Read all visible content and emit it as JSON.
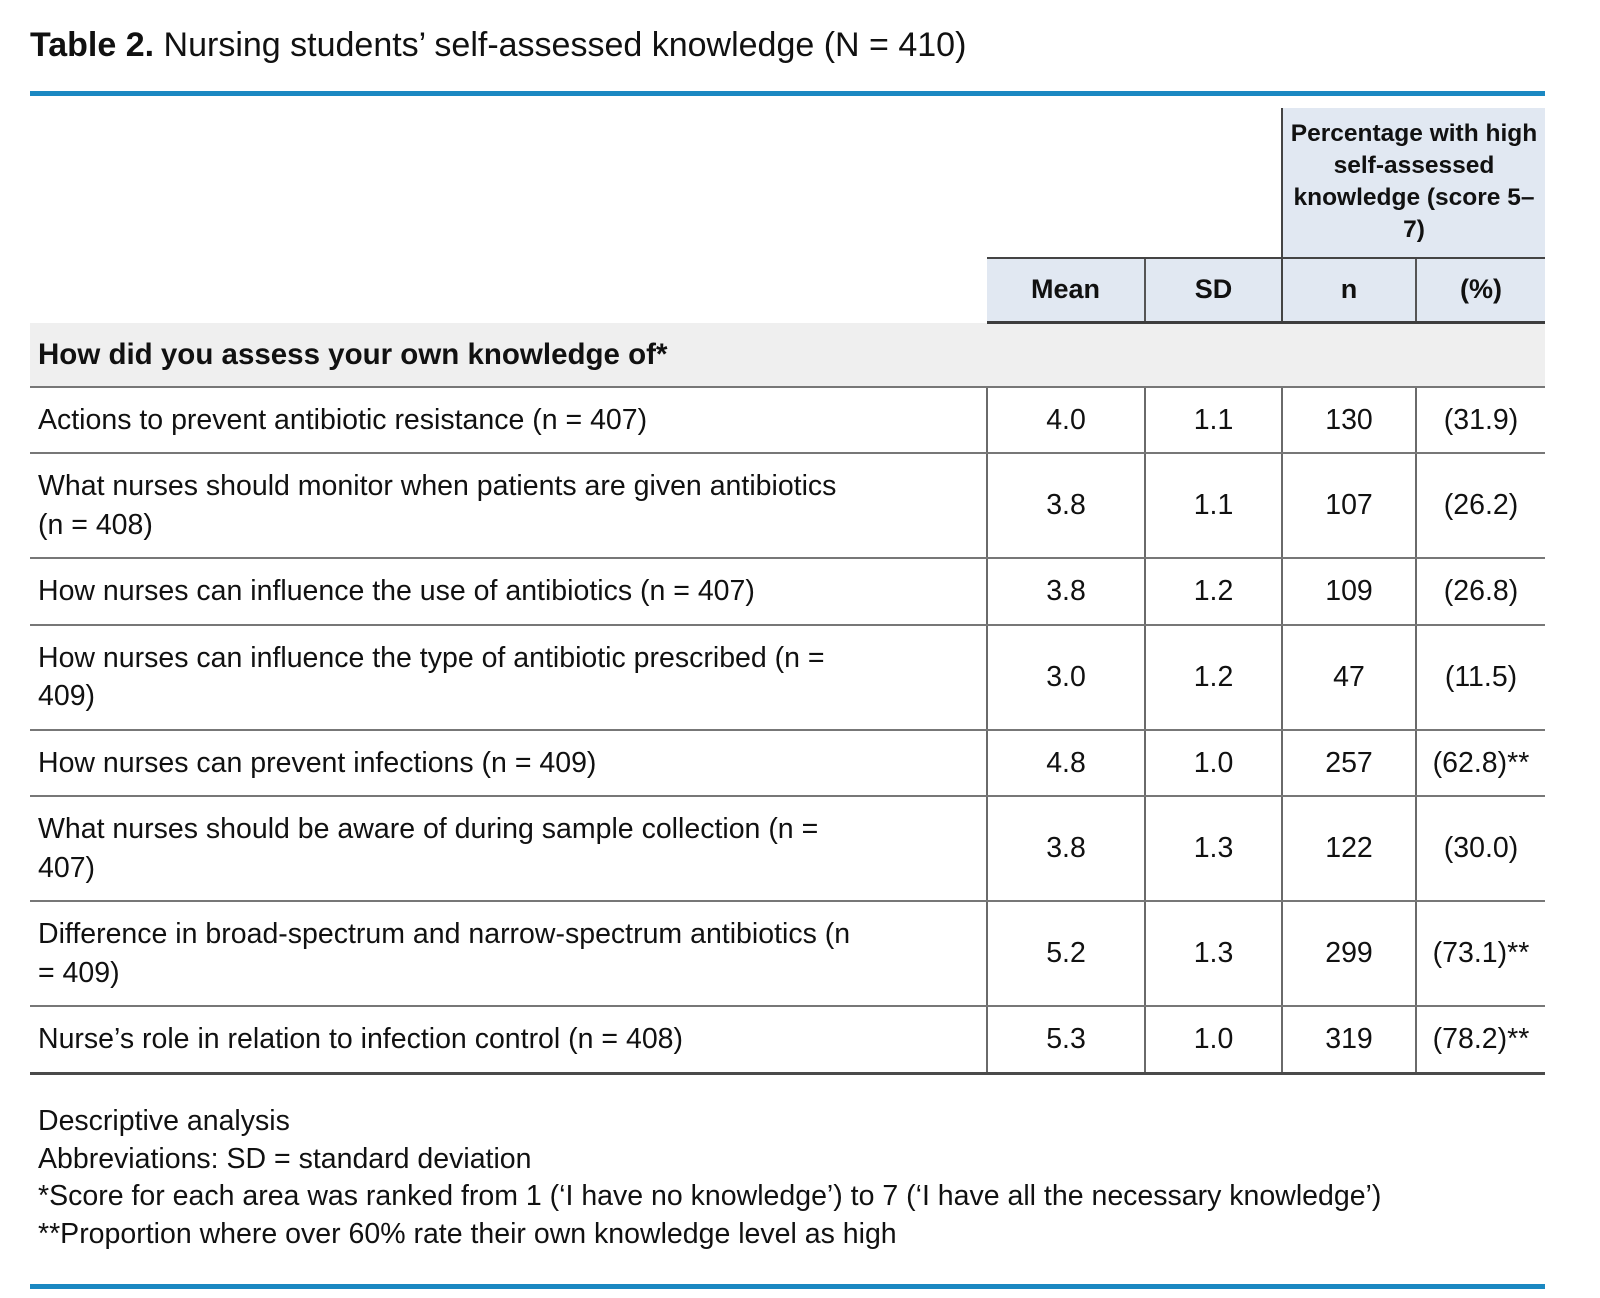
{
  "title": {
    "label": "Table 2.",
    "text": " Nursing students’ self-assessed knowledge (N = 410)"
  },
  "colors": {
    "accent_blue": "#1b88c2",
    "header_fill": "#e1e8f2",
    "section_fill": "#efefef"
  },
  "header": {
    "group_header": "Percentage with high self-assessed knowledge (score 5–7)",
    "columns": {
      "mean": "Mean",
      "sd": "SD",
      "n": "n",
      "pct": "(%)"
    }
  },
  "section_header": "How did you assess your own knowledge of*",
  "rows": [
    {
      "label": "Actions to prevent antibiotic resistance (n = 407)",
      "mean": "4.0",
      "sd": "1.1",
      "n": "130",
      "pct": "(31.9)"
    },
    {
      "label": "What nurses should monitor when patients are given antibiotics (n = 408)",
      "mean": "3.8",
      "sd": "1.1",
      "n": "107",
      "pct": "(26.2)"
    },
    {
      "label": "How nurses can influence the use of antibiotics (n = 407)",
      "mean": "3.8",
      "sd": "1.2",
      "n": "109",
      "pct": "(26.8)"
    },
    {
      "label": "How nurses can influence the type of antibiotic prescribed (n = 409)",
      "mean": "3.0",
      "sd": "1.2",
      "n": "47",
      "pct": "(11.5)"
    },
    {
      "label": "How nurses can prevent infections (n = 409)",
      "mean": "4.8",
      "sd": "1.0",
      "n": "257",
      "pct": "(62.8)**"
    },
    {
      "label": "What nurses should be aware of during sample collection (n = 407)",
      "mean": "3.8",
      "sd": "1.3",
      "n": "122",
      "pct": "(30.0)"
    },
    {
      "label": "Difference in broad-spectrum and narrow-spectrum antibiotics (n = 409)",
      "mean": "5.2",
      "sd": "1.3",
      "n": "299",
      "pct": "(73.1)**"
    },
    {
      "label": "Nurse’s role in relation to infection control (n = 408)",
      "mean": "5.3",
      "sd": "1.0",
      "n": "319",
      "pct": "(78.2)**"
    }
  ],
  "footnotes": [
    "Descriptive analysis",
    "Abbreviations: SD = standard deviation",
    "*Score for each area was ranked from 1 (‘I have no knowledge’) to 7 (‘I have all the necessary knowledge’)",
    "**Proportion where over 60% rate their own knowledge level as high"
  ]
}
